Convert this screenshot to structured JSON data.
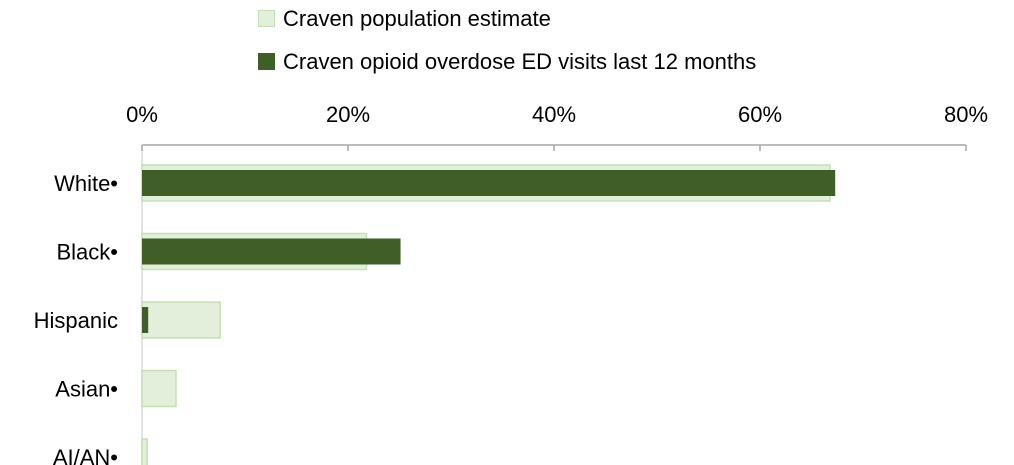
{
  "chart_data": {
    "type": "bar",
    "orientation": "horizontal",
    "categories": [
      "White•",
      "Black•",
      "Hispanic",
      "Asian•",
      "AI/AN•"
    ],
    "series": [
      {
        "name": "Craven population estimate",
        "values": [
          66.8,
          21.8,
          7.6,
          3.3,
          0.5
        ],
        "color": "#e2efda",
        "stroke": "#c5e0b4"
      },
      {
        "name": "Craven opioid overdose ED visits last 12 months",
        "values": [
          67.3,
          25.1,
          0.6,
          0,
          0
        ],
        "color": "#3f5f27"
      }
    ],
    "xlim": [
      0,
      80
    ],
    "xticks": [
      "0%",
      "20%",
      "40%",
      "60%",
      "80%"
    ],
    "axis_position": "top",
    "legend_position": "top",
    "grid": false
  }
}
